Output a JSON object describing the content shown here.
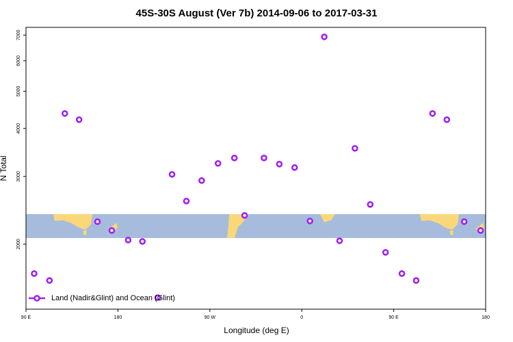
{
  "chart_data": {
    "type": "scatter",
    "title": "45S-30S August (Ver 7b)   2014-09-06 to 2017-03-31",
    "x_label": "Longitude (deg E)",
    "y_label": "N Total",
    "log_y": true,
    "xlim": [
      90,
      540
    ],
    "ylim": [
      1355,
      7330
    ],
    "xticks": [
      {
        "value": 90,
        "label": "90 E"
      },
      180,
      {
        "value": 270,
        "label": "90 W"
      },
      {
        "value": 360,
        "label": "0"
      },
      {
        "value": 450,
        "label": "90 E"
      },
      {
        "value": 540,
        "label": "180"
      }
    ],
    "yticks": [
      2000,
      3000,
      4000,
      5000,
      6000,
      7000
    ],
    "legend": "bottom-left",
    "series": [
      {
        "name": "Land (Nadir&Glint) and Ocean (Glint)",
        "color": "#a020f0",
        "x": [
          98,
          113,
          128,
          142,
          160,
          174,
          190,
          204,
          219,
          233,
          247,
          262,
          278,
          294,
          304,
          323,
          338,
          353,
          368,
          382,
          397,
          412,
          427,
          442,
          458,
          472,
          488,
          502,
          519,
          535
        ],
        "values": [
          1677,
          1609,
          4376,
          4217,
          2289,
          2171,
          2050,
          2033,
          1452,
          3039,
          2589,
          2928,
          3245,
          3352,
          2376,
          3352,
          3231,
          3165,
          2298,
          6924,
          2041,
          3551,
          2537,
          1904,
          1677,
          1609,
          4376,
          4217,
          2289,
          2171
        ]
      }
    ]
  }
}
